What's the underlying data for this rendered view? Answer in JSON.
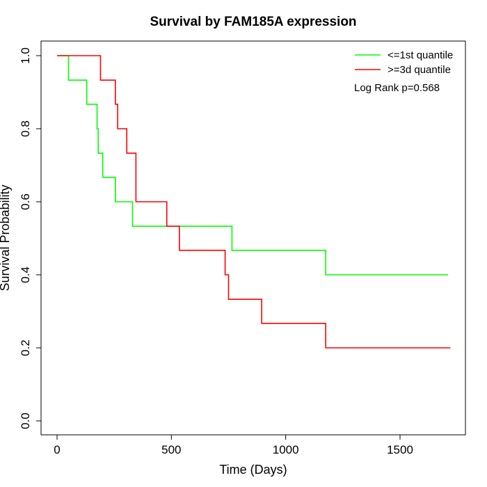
{
  "chart_data": {
    "type": "line",
    "title": "Survival by FAM185A expression",
    "xlabel": "Time (Days)",
    "ylabel": "Survival Probability",
    "xlim": [
      0,
      1720
    ],
    "ylim": [
      0,
      1
    ],
    "x_ticks": [
      0,
      500,
      1000,
      1500
    ],
    "y_ticks": [
      0.0,
      0.2,
      0.4,
      0.6,
      0.8,
      1.0
    ],
    "x_tick_labels": [
      "0",
      "500",
      "1000",
      "1500"
    ],
    "y_tick_labels": [
      "0.0",
      "0.2",
      "0.4",
      "0.6",
      "0.8",
      "1.0"
    ],
    "grid": false,
    "legend_position": "top-right",
    "annotation": "Log Rank p=0.568",
    "series": [
      {
        "name": "<=1st quantile",
        "color": "#00ff00",
        "step_points": [
          [
            0,
            1.0
          ],
          [
            50,
            0.933
          ],
          [
            130,
            0.867
          ],
          [
            175,
            0.8
          ],
          [
            180,
            0.733
          ],
          [
            200,
            0.667
          ],
          [
            255,
            0.6
          ],
          [
            330,
            0.533
          ],
          [
            765,
            0.467
          ],
          [
            1175,
            0.4
          ],
          [
            1710,
            0.4
          ]
        ]
      },
      {
        "name": ">=3d quantile",
        "color": "#ff0000",
        "step_points": [
          [
            0,
            1.0
          ],
          [
            190,
            0.933
          ],
          [
            255,
            0.867
          ],
          [
            265,
            0.8
          ],
          [
            305,
            0.733
          ],
          [
            345,
            0.6
          ],
          [
            480,
            0.533
          ],
          [
            535,
            0.467
          ],
          [
            735,
            0.4
          ],
          [
            750,
            0.333
          ],
          [
            895,
            0.267
          ],
          [
            1175,
            0.2
          ],
          [
            1720,
            0.2
          ]
        ]
      }
    ]
  }
}
